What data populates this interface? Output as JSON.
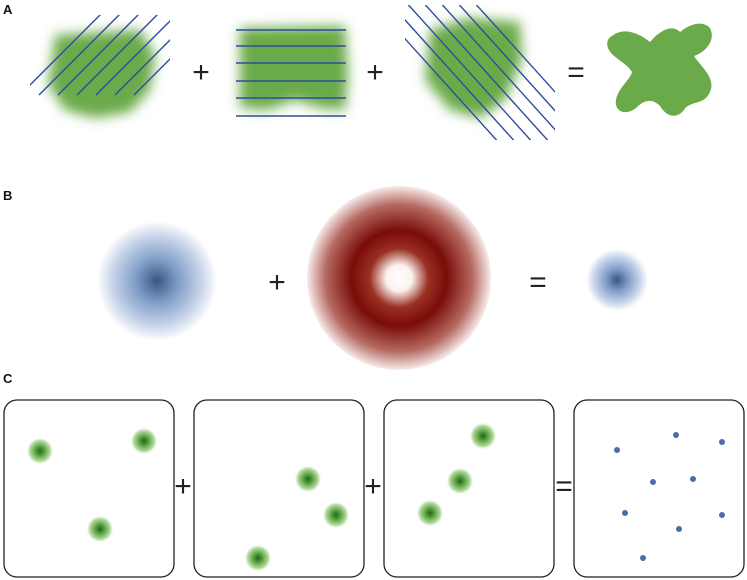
{
  "panels": {
    "a": {
      "label": "A",
      "op1": "+",
      "op2": "+",
      "eq": "="
    },
    "b": {
      "label": "B",
      "op1": "+",
      "eq": "="
    },
    "c": {
      "label": "C",
      "op1": "+",
      "op2": "+",
      "eq": "="
    }
  },
  "colors": {
    "green": "#6aaa4a",
    "green_dark": "#2f7a22",
    "line_blue": "#2f4d9e",
    "blob_blue": "#7f9cc7",
    "blob_blue_dark": "#3a5680",
    "ring_red": "#7a0c08",
    "dot_blue": "#4a6ea8",
    "text": "#222222"
  }
}
